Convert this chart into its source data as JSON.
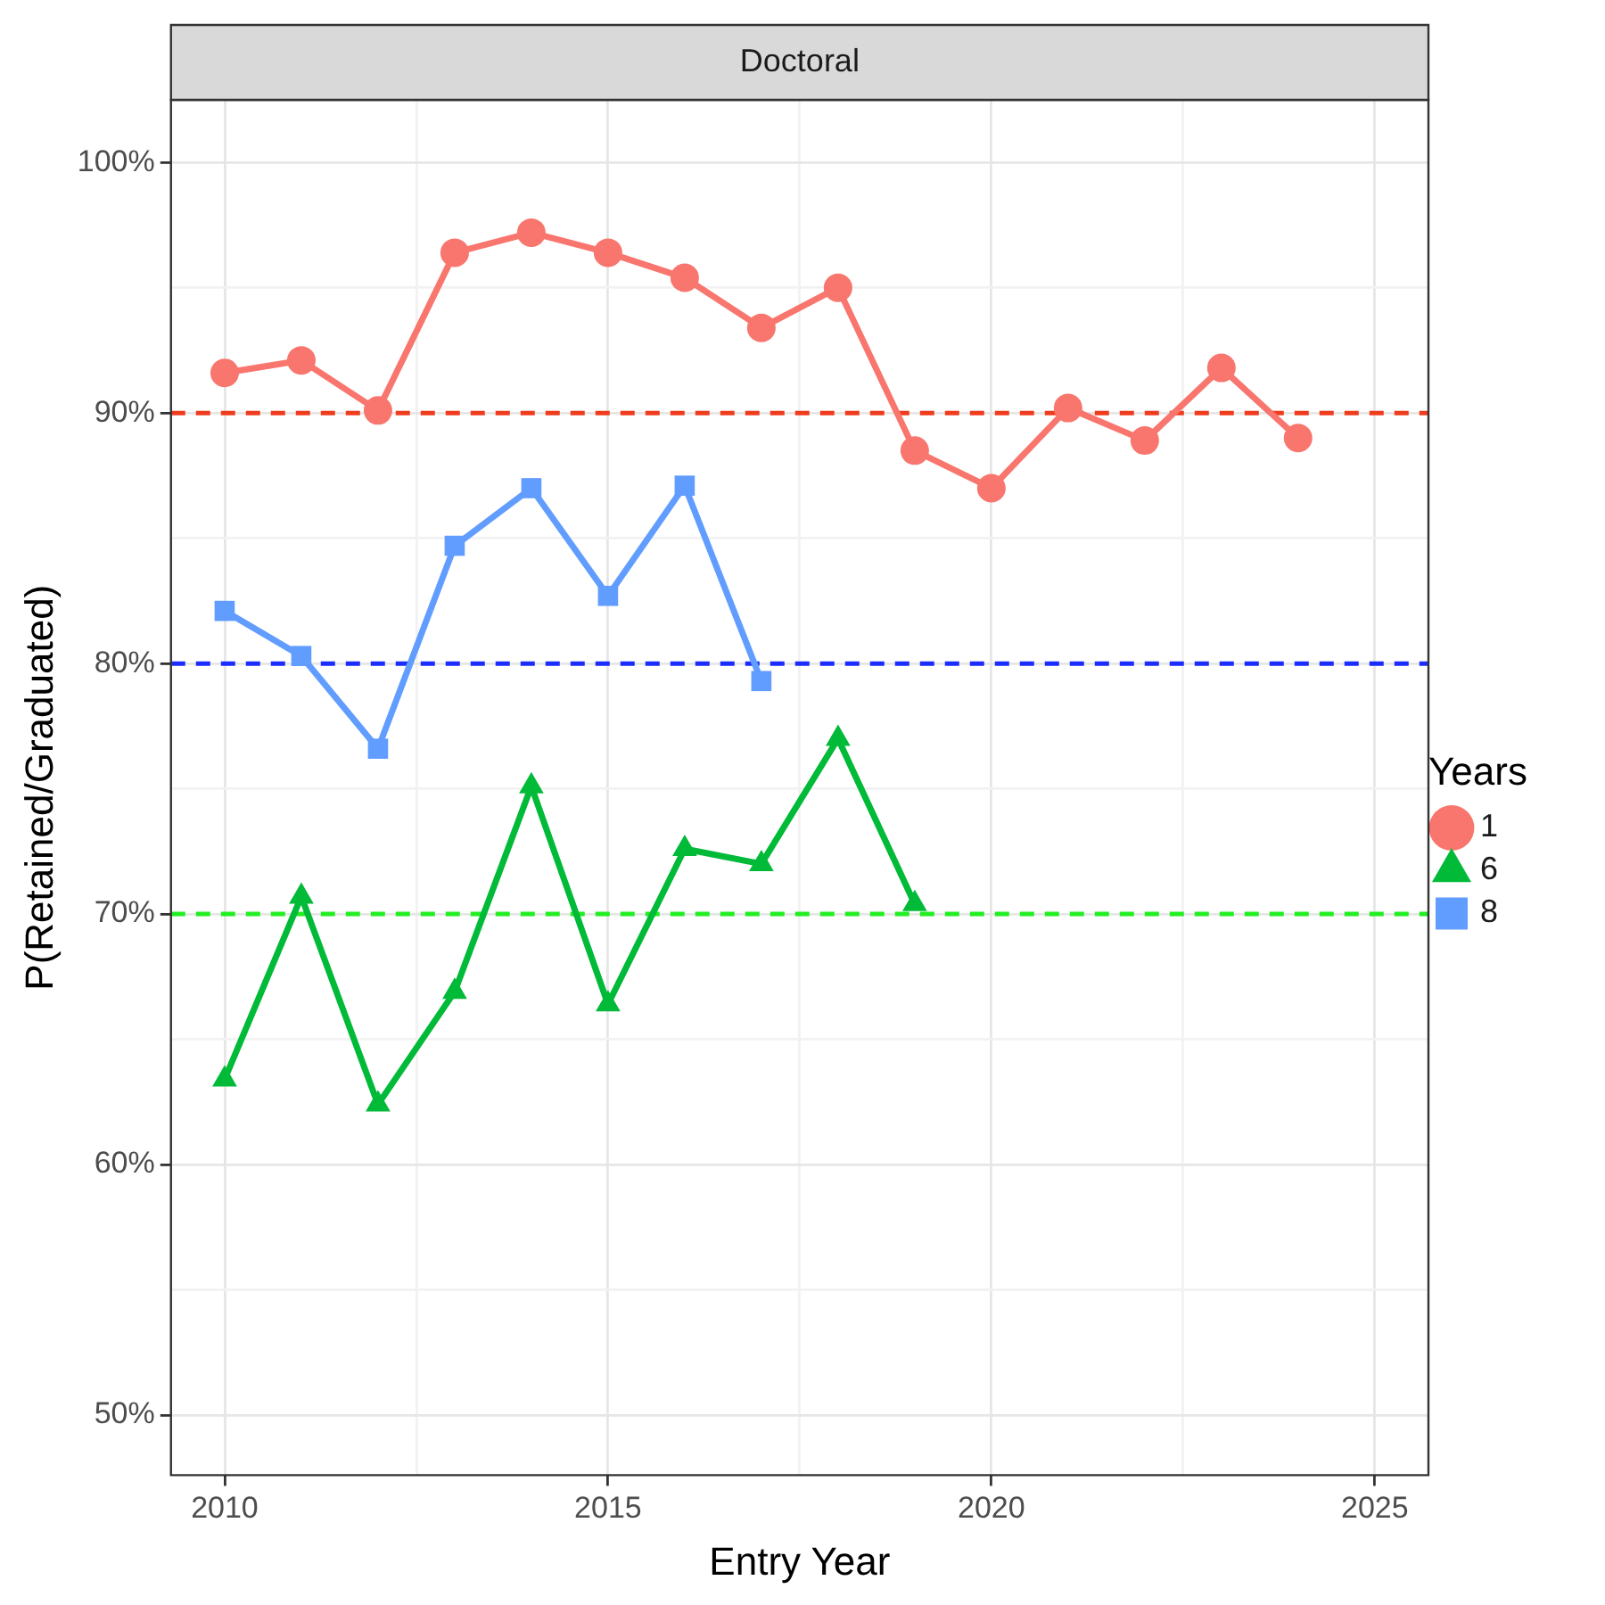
{
  "chart_data": {
    "type": "line",
    "title": "Doctoral",
    "xlabel": "Entry Year",
    "ylabel": "P(Retained/Graduated)",
    "legend_title": "Years",
    "legend": "right",
    "grid": true,
    "x": [
      2010,
      2011,
      2012,
      2013,
      2014,
      2015,
      2016,
      2017,
      2018,
      2019,
      2020,
      2021,
      2022,
      2023,
      2024
    ],
    "xlim": [
      2009.3,
      2025.7
    ],
    "xticks": [
      2010,
      {
        "value": 2012.5,
        "label": null
      },
      2015,
      {
        "value": 2017.5,
        "label": null
      },
      2020,
      {
        "value": 2022.5,
        "label": null
      },
      2025
    ],
    "ylim": [
      47.6,
      102.5
    ],
    "yticks": [
      {
        "value": 50,
        "label": "50%"
      },
      {
        "value": 55,
        "label": null
      },
      {
        "value": 60,
        "label": "60%"
      },
      {
        "value": 65,
        "label": null
      },
      {
        "value": 70,
        "label": "70%"
      },
      {
        "value": 75,
        "label": null
      },
      {
        "value": 80,
        "label": "80%"
      },
      {
        "value": 85,
        "label": null
      },
      {
        "value": 90,
        "label": "90%"
      },
      {
        "value": 95,
        "label": null
      },
      {
        "value": 100,
        "label": "100%"
      }
    ],
    "series": [
      {
        "name": "1",
        "color": "#f8766d",
        "marker": "circle",
        "values": [
          91.6,
          92.1,
          90.1,
          96.4,
          97.2,
          96.4,
          95.4,
          93.4,
          95.0,
          88.5,
          87.0,
          90.2,
          88.9,
          91.8,
          89.0
        ]
      },
      {
        "name": "6",
        "color": "#00ba38",
        "marker": "triangle",
        "values": [
          63.4,
          70.7,
          62.4,
          66.9,
          75.1,
          66.4,
          72.6,
          72.0,
          77.0,
          70.4,
          null,
          null,
          null,
          null,
          null
        ]
      },
      {
        "name": "8",
        "color": "#619cff",
        "marker": "square",
        "values": [
          82.1,
          80.3,
          76.6,
          84.7,
          87.0,
          82.7,
          87.1,
          79.3,
          null,
          null,
          null,
          null,
          null,
          null,
          null
        ]
      }
    ],
    "ref_lines": [
      {
        "axis": "y",
        "value": 90,
        "color": "#f03c1e",
        "line_style": "dashed"
      },
      {
        "axis": "y",
        "value": 80,
        "color": "#1a2cff",
        "line_style": "dashed"
      },
      {
        "axis": "y",
        "value": 70,
        "color": "#22ee22",
        "line_style": "dashed"
      }
    ]
  }
}
